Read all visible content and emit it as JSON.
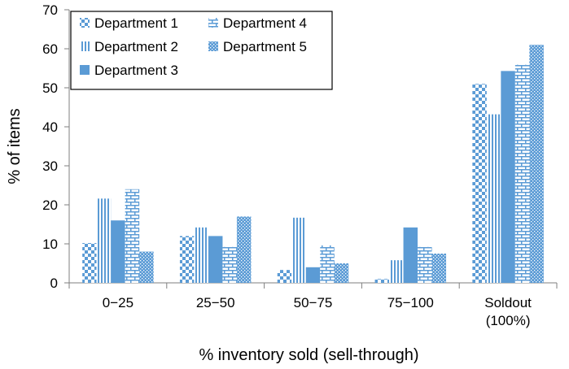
{
  "chart_data": {
    "type": "bar",
    "xlabel": "% inventory sold (sell-through)",
    "ylabel": "% of items",
    "ylim": [
      0,
      70
    ],
    "yticks": [
      0,
      10,
      20,
      30,
      40,
      50,
      60,
      70
    ],
    "categories": [
      [
        "0−25"
      ],
      [
        "25−50"
      ],
      [
        "50−75"
      ],
      [
        "75−100"
      ],
      [
        "Soldout",
        "(100%)"
      ]
    ],
    "series": [
      {
        "name": "Department 1",
        "pattern": "checker",
        "values": [
          10.2,
          12.0,
          3.3,
          1.0,
          51.0
        ]
      },
      {
        "name": "Department 2",
        "pattern": "vlines",
        "values": [
          21.6,
          14.2,
          16.7,
          5.8,
          43.2
        ]
      },
      {
        "name": "Department 3",
        "pattern": "solid",
        "values": [
          16.0,
          12.0,
          4.0,
          14.2,
          54.3
        ]
      },
      {
        "name": "Department 4",
        "pattern": "brick",
        "values": [
          24.0,
          9.2,
          9.6,
          9.2,
          55.9
        ]
      },
      {
        "name": "Department 5",
        "pattern": "dots",
        "values": [
          8.0,
          17.0,
          5.0,
          7.5,
          61.0
        ]
      }
    ],
    "legend": {
      "placement": "top-left",
      "order": [
        0,
        3,
        1,
        4,
        2
      ]
    },
    "colors": {
      "accent": "#5b9bd5",
      "light": "#ffffff",
      "axis": "#7f7f7f"
    }
  }
}
